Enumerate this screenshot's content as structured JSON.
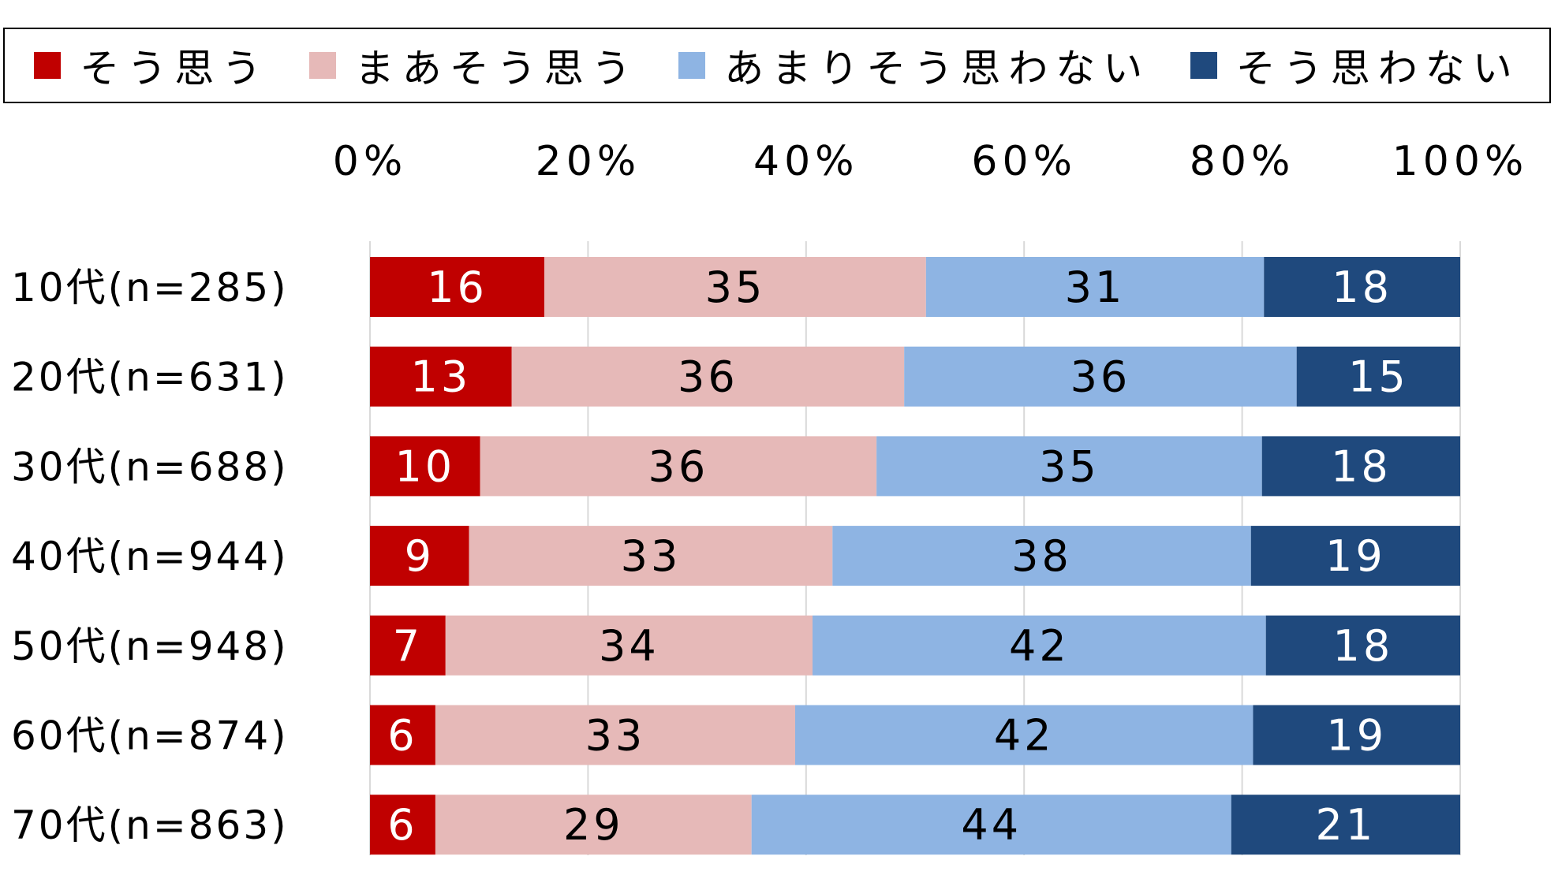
{
  "chart_data": {
    "type": "bar",
    "orientation": "horizontal",
    "stacked": true,
    "categories": [
      "10代(n=285)",
      "20代(n=631)",
      "30代(n=688)",
      "40代(n=944)",
      "50代(n=948)",
      "60代(n=874)",
      "70代(n=863)"
    ],
    "series": [
      {
        "name": "そう思う",
        "color": "#c00000",
        "values": [
          16,
          13,
          10,
          9,
          7,
          6,
          6
        ]
      },
      {
        "name": "まあそう思う",
        "color": "#e6b9b8",
        "values": [
          35,
          36,
          36,
          33,
          34,
          33,
          29
        ]
      },
      {
        "name": "あまりそう思わない",
        "color": "#8eb4e3",
        "values": [
          31,
          36,
          35,
          38,
          42,
          42,
          44
        ]
      },
      {
        "name": "そう思わない",
        "color": "#1f497d",
        "values": [
          18,
          15,
          18,
          19,
          18,
          19,
          21
        ]
      }
    ],
    "xlim": [
      0,
      100
    ],
    "xticks": [
      "0%",
      "20%",
      "40%",
      "60%",
      "80%",
      "100%"
    ],
    "x_axis_position": "top",
    "grid": true,
    "legend_position": "top",
    "data_labels": true
  }
}
